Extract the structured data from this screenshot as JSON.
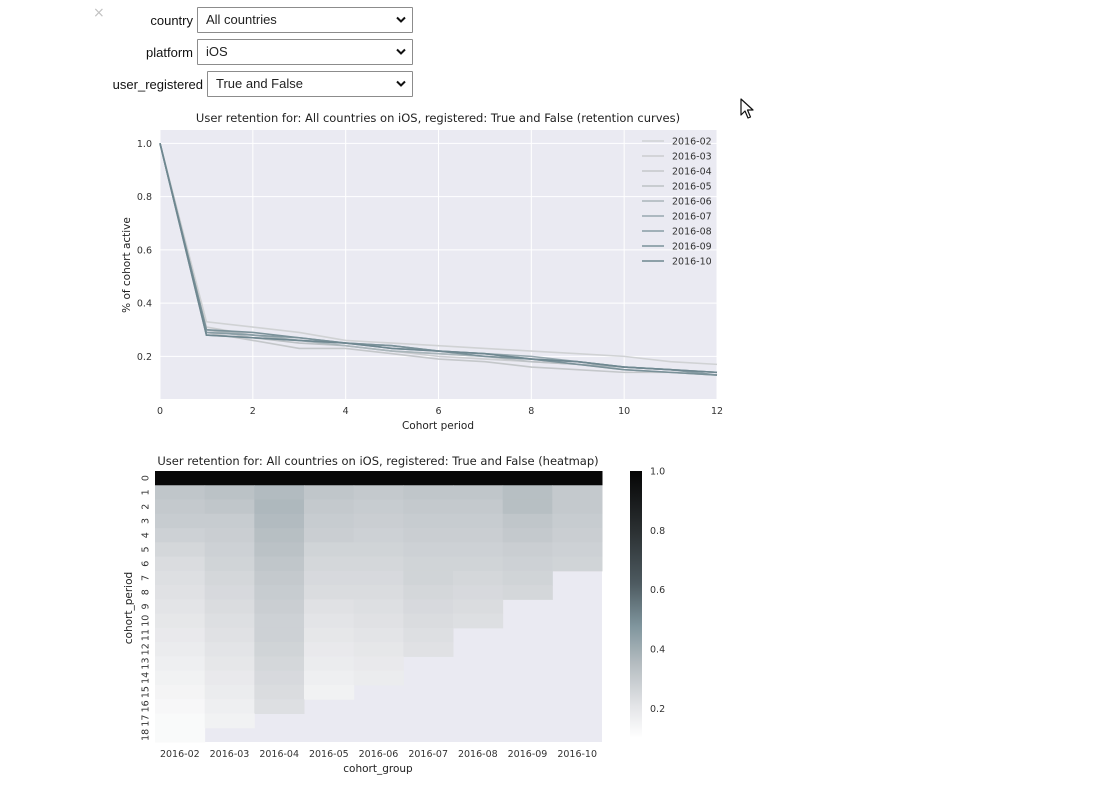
{
  "widgets": {
    "close_symbol": "×",
    "country": {
      "label": "country",
      "value": "All countries"
    },
    "platform": {
      "label": "platform",
      "value": "iOS"
    },
    "user_registered": {
      "label": "user_registered",
      "value": "True and False"
    }
  },
  "colors": {
    "plot_bg": "#EAEAF2",
    "grid": "#ffffff",
    "curve_light": "#C5C8CB",
    "curve_dark": "#6E8790",
    "heatmap_max": "#0a0a0a"
  },
  "chart_data": [
    {
      "type": "line",
      "title": "User retention for: All countries on iOS, registered: True and False (retention curves)",
      "xlabel": "Cohort period",
      "ylabel": "% of cohort active",
      "xlim": [
        0,
        12
      ],
      "ylim": [
        0.04,
        1.05
      ],
      "xticks": [
        "0",
        "2",
        "4",
        "6",
        "8",
        "10",
        "12"
      ],
      "yticks": [
        "0.2",
        "0.4",
        "0.6",
        "0.8",
        "1.0"
      ],
      "grid": true,
      "legend": "top-right",
      "x": [
        0,
        1,
        2,
        3,
        4,
        5,
        6,
        7,
        8,
        9,
        10,
        11,
        12
      ],
      "series": [
        {
          "name": "2016-02",
          "color": "#D0D2D4",
          "values": [
            1.0,
            0.33,
            0.31,
            0.29,
            0.26,
            0.25,
            0.24,
            0.23,
            0.22,
            0.21,
            0.2,
            0.18,
            0.17
          ]
        },
        {
          "name": "2016-03",
          "color": "#CBCDD0",
          "values": [
            1.0,
            0.31,
            0.28,
            0.26,
            0.24,
            0.22,
            0.2,
            0.19,
            0.18,
            0.17,
            0.16,
            0.15,
            0.14
          ]
        },
        {
          "name": "2016-04",
          "color": "#C4C7CA",
          "values": [
            1.0,
            0.29,
            0.26,
            0.23,
            0.23,
            0.21,
            0.19,
            0.18,
            0.16,
            0.15,
            0.14,
            0.14,
            0.13
          ]
        },
        {
          "name": "2016-05",
          "color": "#BCC1C5",
          "values": [
            1.0,
            0.3,
            0.27,
            0.25,
            0.24,
            0.22,
            0.21,
            0.2,
            0.18,
            0.17,
            0.15,
            0.14,
            0.13
          ]
        },
        {
          "name": "2016-06",
          "color": "#A9B5BA",
          "values": [
            1.0,
            0.3,
            0.28,
            0.26,
            0.24,
            0.22,
            0.21,
            0.2,
            0.19,
            0.17,
            0.16,
            0.15,
            0.14
          ]
        },
        {
          "name": "2016-07",
          "color": "#97A8AF",
          "values": [
            1.0,
            0.28,
            0.27,
            0.26,
            0.25,
            0.23,
            0.22,
            0.21,
            0.2,
            0.18,
            0.16,
            0.15,
            0.14
          ]
        },
        {
          "name": "2016-08",
          "color": "#879CA4",
          "values": [
            1.0,
            0.29,
            0.28,
            0.27,
            0.25,
            0.24,
            0.22,
            0.21,
            0.19,
            0.18,
            0.16,
            0.15,
            0.13
          ]
        },
        {
          "name": "2016-09",
          "color": "#7A9199",
          "values": [
            1.0,
            0.3,
            0.29,
            0.27,
            0.25,
            0.24,
            0.22,
            0.2,
            0.19,
            0.17,
            0.15,
            0.14,
            0.13
          ]
        },
        {
          "name": "2016-10",
          "color": "#6E8790",
          "values": [
            1.0,
            0.28,
            0.27,
            0.26,
            0.25,
            0.23,
            0.22,
            0.21,
            0.19,
            0.18,
            0.16,
            0.15,
            0.14
          ]
        }
      ]
    },
    {
      "type": "heatmap",
      "title": "User retention for: All countries on iOS, registered: True and False (heatmap)",
      "xlabel": "cohort_group",
      "ylabel": "cohort_period",
      "x_categories": [
        "2016-02",
        "2016-03",
        "2016-04",
        "2016-05",
        "2016-06",
        "2016-07",
        "2016-08",
        "2016-09",
        "2016-10"
      ],
      "y_categories": [
        "0",
        "1",
        "2",
        "3",
        "4",
        "5",
        "6",
        "7",
        "8",
        "9",
        "10",
        "11",
        "12",
        "13",
        "14",
        "15",
        "16",
        "17",
        "18"
      ],
      "colorbar": {
        "min": 0.1,
        "max": 1.0,
        "ticks": [
          "0.2",
          "0.4",
          "0.6",
          "0.8",
          "1.0"
        ]
      },
      "values": [
        [
          1.0,
          1.0,
          1.0,
          1.0,
          1.0,
          1.0,
          1.0,
          1.0,
          1.0
        ],
        [
          0.31,
          0.32,
          0.34,
          0.31,
          0.3,
          0.31,
          0.31,
          0.33,
          0.3
        ],
        [
          0.3,
          0.31,
          0.35,
          0.3,
          0.29,
          0.3,
          0.3,
          0.33,
          0.3
        ],
        [
          0.29,
          0.29,
          0.34,
          0.29,
          0.28,
          0.29,
          0.29,
          0.31,
          0.29
        ],
        [
          0.27,
          0.28,
          0.33,
          0.28,
          0.27,
          0.28,
          0.28,
          0.3,
          0.28
        ],
        [
          0.25,
          0.27,
          0.32,
          0.26,
          0.26,
          0.27,
          0.27,
          0.28,
          0.27
        ],
        [
          0.23,
          0.26,
          0.31,
          0.25,
          0.25,
          0.26,
          0.26,
          0.27,
          0.26
        ],
        [
          0.22,
          0.25,
          0.3,
          0.24,
          0.24,
          0.26,
          0.25,
          0.26,
          null
        ],
        [
          0.21,
          0.24,
          0.29,
          0.23,
          0.23,
          0.25,
          0.24,
          0.25,
          null
        ],
        [
          0.2,
          0.23,
          0.28,
          0.21,
          0.22,
          0.24,
          0.23,
          null,
          null
        ],
        [
          0.19,
          0.22,
          0.27,
          0.2,
          0.21,
          0.23,
          0.22,
          null,
          null
        ],
        [
          0.18,
          0.21,
          0.27,
          0.19,
          0.2,
          0.22,
          null,
          null,
          null
        ],
        [
          0.17,
          0.2,
          0.26,
          0.18,
          0.19,
          0.21,
          null,
          null,
          null
        ],
        [
          0.16,
          0.19,
          0.25,
          0.17,
          0.18,
          null,
          null,
          null,
          null
        ],
        [
          0.15,
          0.18,
          0.24,
          0.16,
          0.17,
          null,
          null,
          null,
          null
        ],
        [
          0.14,
          0.17,
          0.23,
          0.15,
          null,
          null,
          null,
          null,
          null
        ],
        [
          0.13,
          0.16,
          0.22,
          null,
          null,
          null,
          null,
          null,
          null
        ],
        [
          0.12,
          0.15,
          null,
          null,
          null,
          null,
          null,
          null,
          null
        ],
        [
          0.12,
          null,
          null,
          null,
          null,
          null,
          null,
          null,
          null
        ]
      ]
    }
  ]
}
